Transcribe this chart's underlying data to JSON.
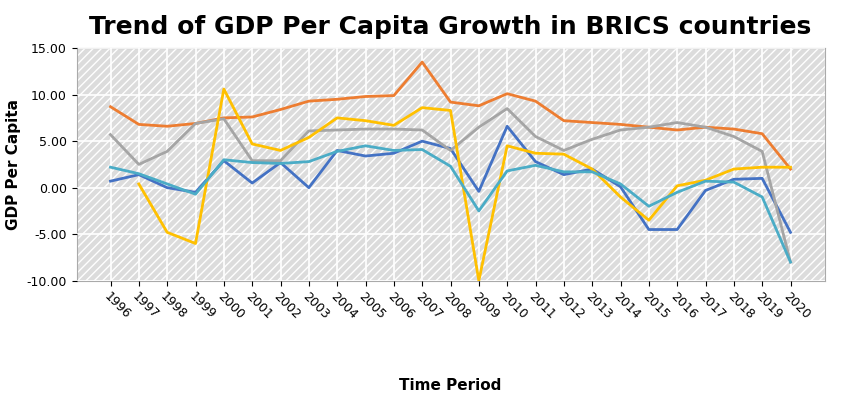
{
  "title": "Trend of GDP Per Capita Growth in BRICS countries",
  "xlabel": "Time Period",
  "ylabel": "GDP Per Capita",
  "years": [
    1996,
    1997,
    1998,
    1999,
    2000,
    2001,
    2002,
    2003,
    2004,
    2005,
    2006,
    2007,
    2008,
    2009,
    2010,
    2011,
    2012,
    2013,
    2014,
    2015,
    2016,
    2017,
    2018,
    2019,
    2020
  ],
  "brazil": [
    0.7,
    1.4,
    0.0,
    -0.5,
    2.9,
    0.5,
    2.7,
    0.0,
    4.0,
    3.4,
    3.7,
    5.0,
    4.2,
    -0.4,
    6.6,
    2.8,
    1.4,
    2.0,
    0.1,
    -4.5,
    -4.5,
    -0.3,
    0.9,
    1.0,
    -4.8
  ],
  "china": [
    8.7,
    6.8,
    6.6,
    6.9,
    7.5,
    7.6,
    8.4,
    9.3,
    9.5,
    9.8,
    9.9,
    13.5,
    9.2,
    8.8,
    10.1,
    9.3,
    7.2,
    7.0,
    6.8,
    6.5,
    6.2,
    6.5,
    6.3,
    5.8,
    2.0
  ],
  "india": [
    5.7,
    2.5,
    3.9,
    6.9,
    7.4,
    2.9,
    2.9,
    6.1,
    6.2,
    6.3,
    6.3,
    6.2,
    4.0,
    6.5,
    8.5,
    5.5,
    4.0,
    5.2,
    6.2,
    6.5,
    7.0,
    6.5,
    5.5,
    3.9,
    -8.0
  ],
  "russia": [
    null,
    0.4,
    -4.8,
    -6.0,
    10.6,
    4.7,
    4.0,
    5.4,
    7.5,
    7.2,
    6.7,
    8.6,
    8.3,
    -10.0,
    4.5,
    3.7,
    3.6,
    2.0,
    -1.0,
    -3.5,
    0.2,
    0.8,
    2.0,
    2.2,
    2.2
  ],
  "south_africa": [
    2.2,
    1.5,
    0.4,
    -0.7,
    3.0,
    2.7,
    2.6,
    2.8,
    3.9,
    4.5,
    4.0,
    4.1,
    2.3,
    -2.5,
    1.8,
    2.4,
    1.7,
    1.7,
    0.4,
    -2.0,
    -0.5,
    0.7,
    0.6,
    -1.0,
    -8.0
  ],
  "brazil_color": "#4472C4",
  "china_color": "#ED7D31",
  "india_color": "#A5A5A5",
  "russia_color": "#FFC000",
  "south_africa_color": "#4BACC6",
  "ylim": [
    -10.0,
    15.0
  ],
  "yticks": [
    -10.0,
    -5.0,
    0.0,
    5.0,
    10.0,
    15.0
  ],
  "plot_bg": "#DCDCDC",
  "hatch_color": "#FFFFFF",
  "grid_color": "#FFFFFF",
  "title_fontsize": 18,
  "axis_label_fontsize": 11,
  "tick_fontsize": 9,
  "legend_fontsize": 10,
  "line_width": 2.0
}
